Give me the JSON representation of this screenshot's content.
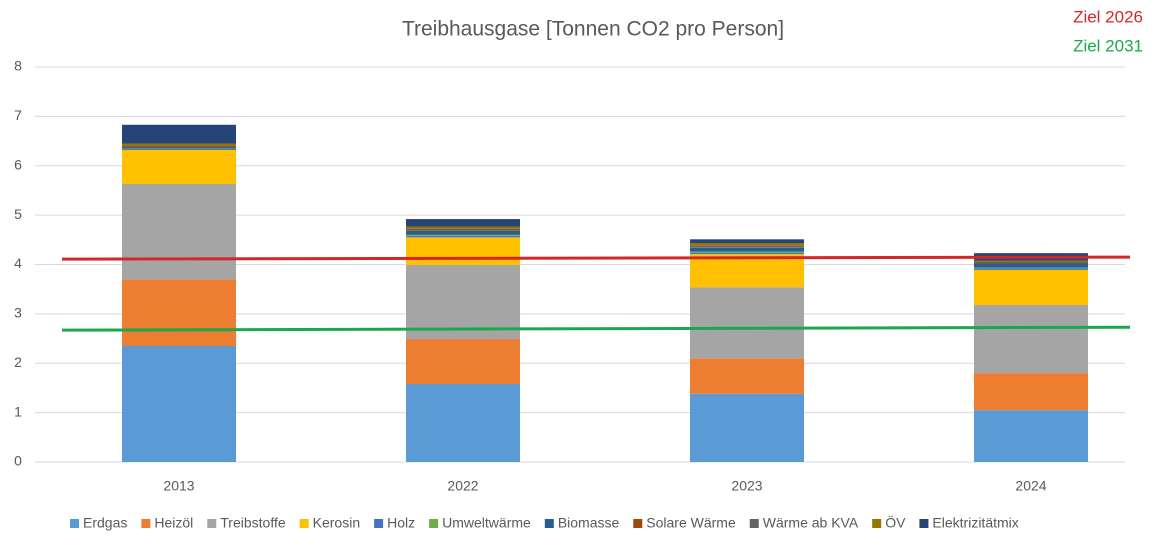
{
  "chart_data": {
    "type": "stacked_bar",
    "title": "Treibhausgase [Tonnen CO2 pro Person]",
    "categories": [
      "2013",
      "2022",
      "2023",
      "2024"
    ],
    "series": [
      {
        "name": "Erdgas",
        "color": "#5b9bd5",
        "values": [
          2.35,
          1.58,
          1.38,
          1.05
        ]
      },
      {
        "name": "Heizöl",
        "color": "#ed7d31",
        "values": [
          1.35,
          0.91,
          0.72,
          0.75
        ]
      },
      {
        "name": "Treibstoffe",
        "color": "#a5a5a5",
        "values": [
          1.93,
          1.5,
          1.44,
          1.38
        ]
      },
      {
        "name": "Kerosin",
        "color": "#ffc000",
        "values": [
          0.69,
          0.56,
          0.67,
          0.71
        ]
      },
      {
        "name": "Holz",
        "color": "#4472c4",
        "values": [
          0.02,
          0.03,
          0.03,
          0.03
        ]
      },
      {
        "name": "Umweltwärme",
        "color": "#70ad47",
        "values": [
          0.01,
          0.02,
          0.02,
          0.02
        ]
      },
      {
        "name": "Biomasse",
        "color": "#255e91",
        "values": [
          0.02,
          0.08,
          0.08,
          0.08
        ]
      },
      {
        "name": "Solare Wärme",
        "color": "#9e480e",
        "values": [
          0.01,
          0.01,
          0.01,
          0.01
        ]
      },
      {
        "name": "Wärme ab KVA",
        "color": "#636363",
        "values": [
          0.02,
          0.03,
          0.03,
          0.03
        ]
      },
      {
        "name": "ÖV",
        "color": "#997300",
        "values": [
          0.05,
          0.05,
          0.05,
          0.02
        ]
      },
      {
        "name": "Elektrizitätmix",
        "color": "#264478",
        "values": [
          0.38,
          0.15,
          0.08,
          0.15
        ]
      }
    ],
    "target_lines": [
      {
        "name": "Ziel 2026",
        "color": "#d62728",
        "values": [
          4.11,
          4.15
        ]
      },
      {
        "name": "Ziel 2031",
        "color": "#1ca84a",
        "values": [
          2.67,
          2.73
        ]
      }
    ],
    "ylim": [
      0,
      8
    ],
    "yticks": [
      0,
      1,
      2,
      3,
      4,
      5,
      6,
      7,
      8
    ],
    "grid": true
  }
}
